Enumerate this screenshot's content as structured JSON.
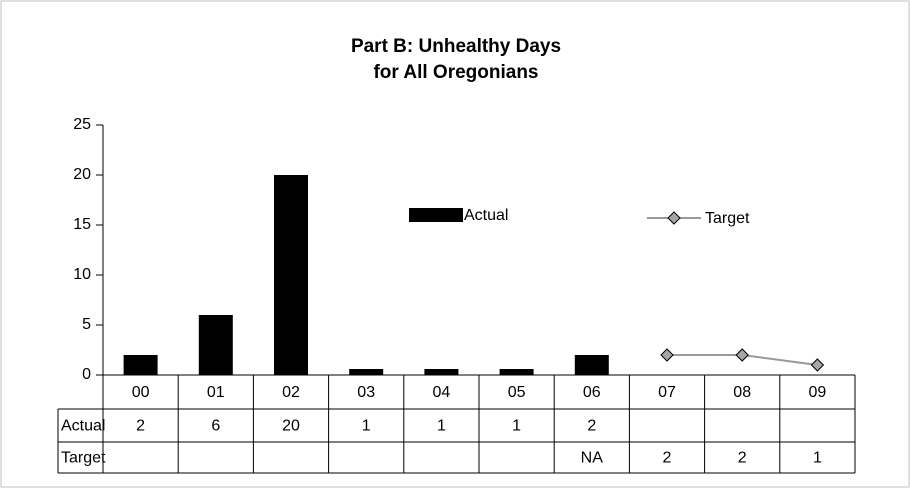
{
  "chart_data": {
    "type": "bar",
    "title": [
      "Part B: Unhealthy Days",
      "for All Oregonians"
    ],
    "categories": [
      "00",
      "01",
      "02",
      "03",
      "04",
      "05",
      "06",
      "07",
      "08",
      "09"
    ],
    "series": [
      {
        "name": "Actual",
        "type": "bar",
        "color": "#000000",
        "values": [
          2,
          6,
          20,
          0.6,
          0.6,
          0.6,
          2,
          null,
          null,
          null
        ],
        "value_labels": [
          "2",
          "6",
          "20",
          "1",
          "1",
          "1",
          "2",
          null,
          null,
          null
        ]
      },
      {
        "name": "Target",
        "type": "line",
        "color": "#999999",
        "marker_color": "#a6a6a6",
        "values": [
          null,
          null,
          null,
          null,
          null,
          null,
          null,
          2,
          2,
          1
        ],
        "value_labels": [
          null,
          null,
          null,
          null,
          null,
          null,
          "NA",
          "2",
          "2",
          "1"
        ]
      }
    ],
    "ylim": [
      0,
      25
    ],
    "yticks": [
      0,
      5,
      10,
      15,
      20,
      25
    ],
    "grid": false,
    "data_table": true
  }
}
